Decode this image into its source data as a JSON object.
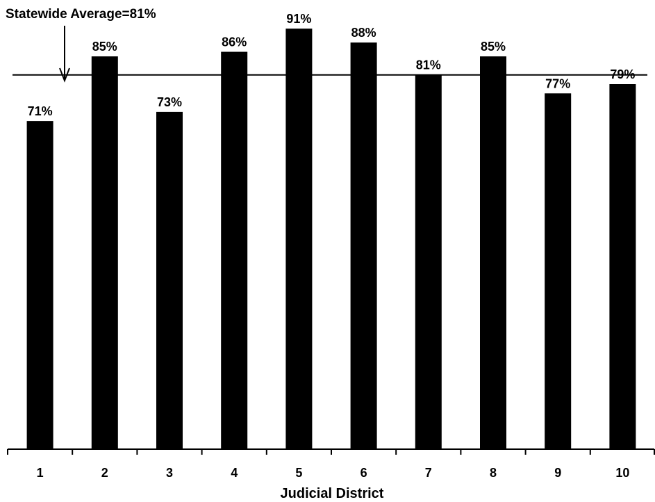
{
  "chart_data": {
    "type": "bar",
    "title": "",
    "xlabel": "Judicial District",
    "ylabel": "",
    "categories": [
      "1",
      "2",
      "3",
      "4",
      "5",
      "6",
      "7",
      "8",
      "9",
      "10"
    ],
    "values": [
      71,
      85,
      73,
      86,
      91,
      88,
      81,
      85,
      77,
      79
    ],
    "data_labels": [
      "71%",
      "85%",
      "73%",
      "86%",
      "91%",
      "88%",
      "81%",
      "85%",
      "77%",
      "79%"
    ],
    "ylim": [
      0,
      96
    ],
    "grid": false,
    "legend": "none",
    "bar_color": "#000000",
    "reference_line": {
      "value": 81,
      "label": "Statewide Average=81%"
    }
  }
}
